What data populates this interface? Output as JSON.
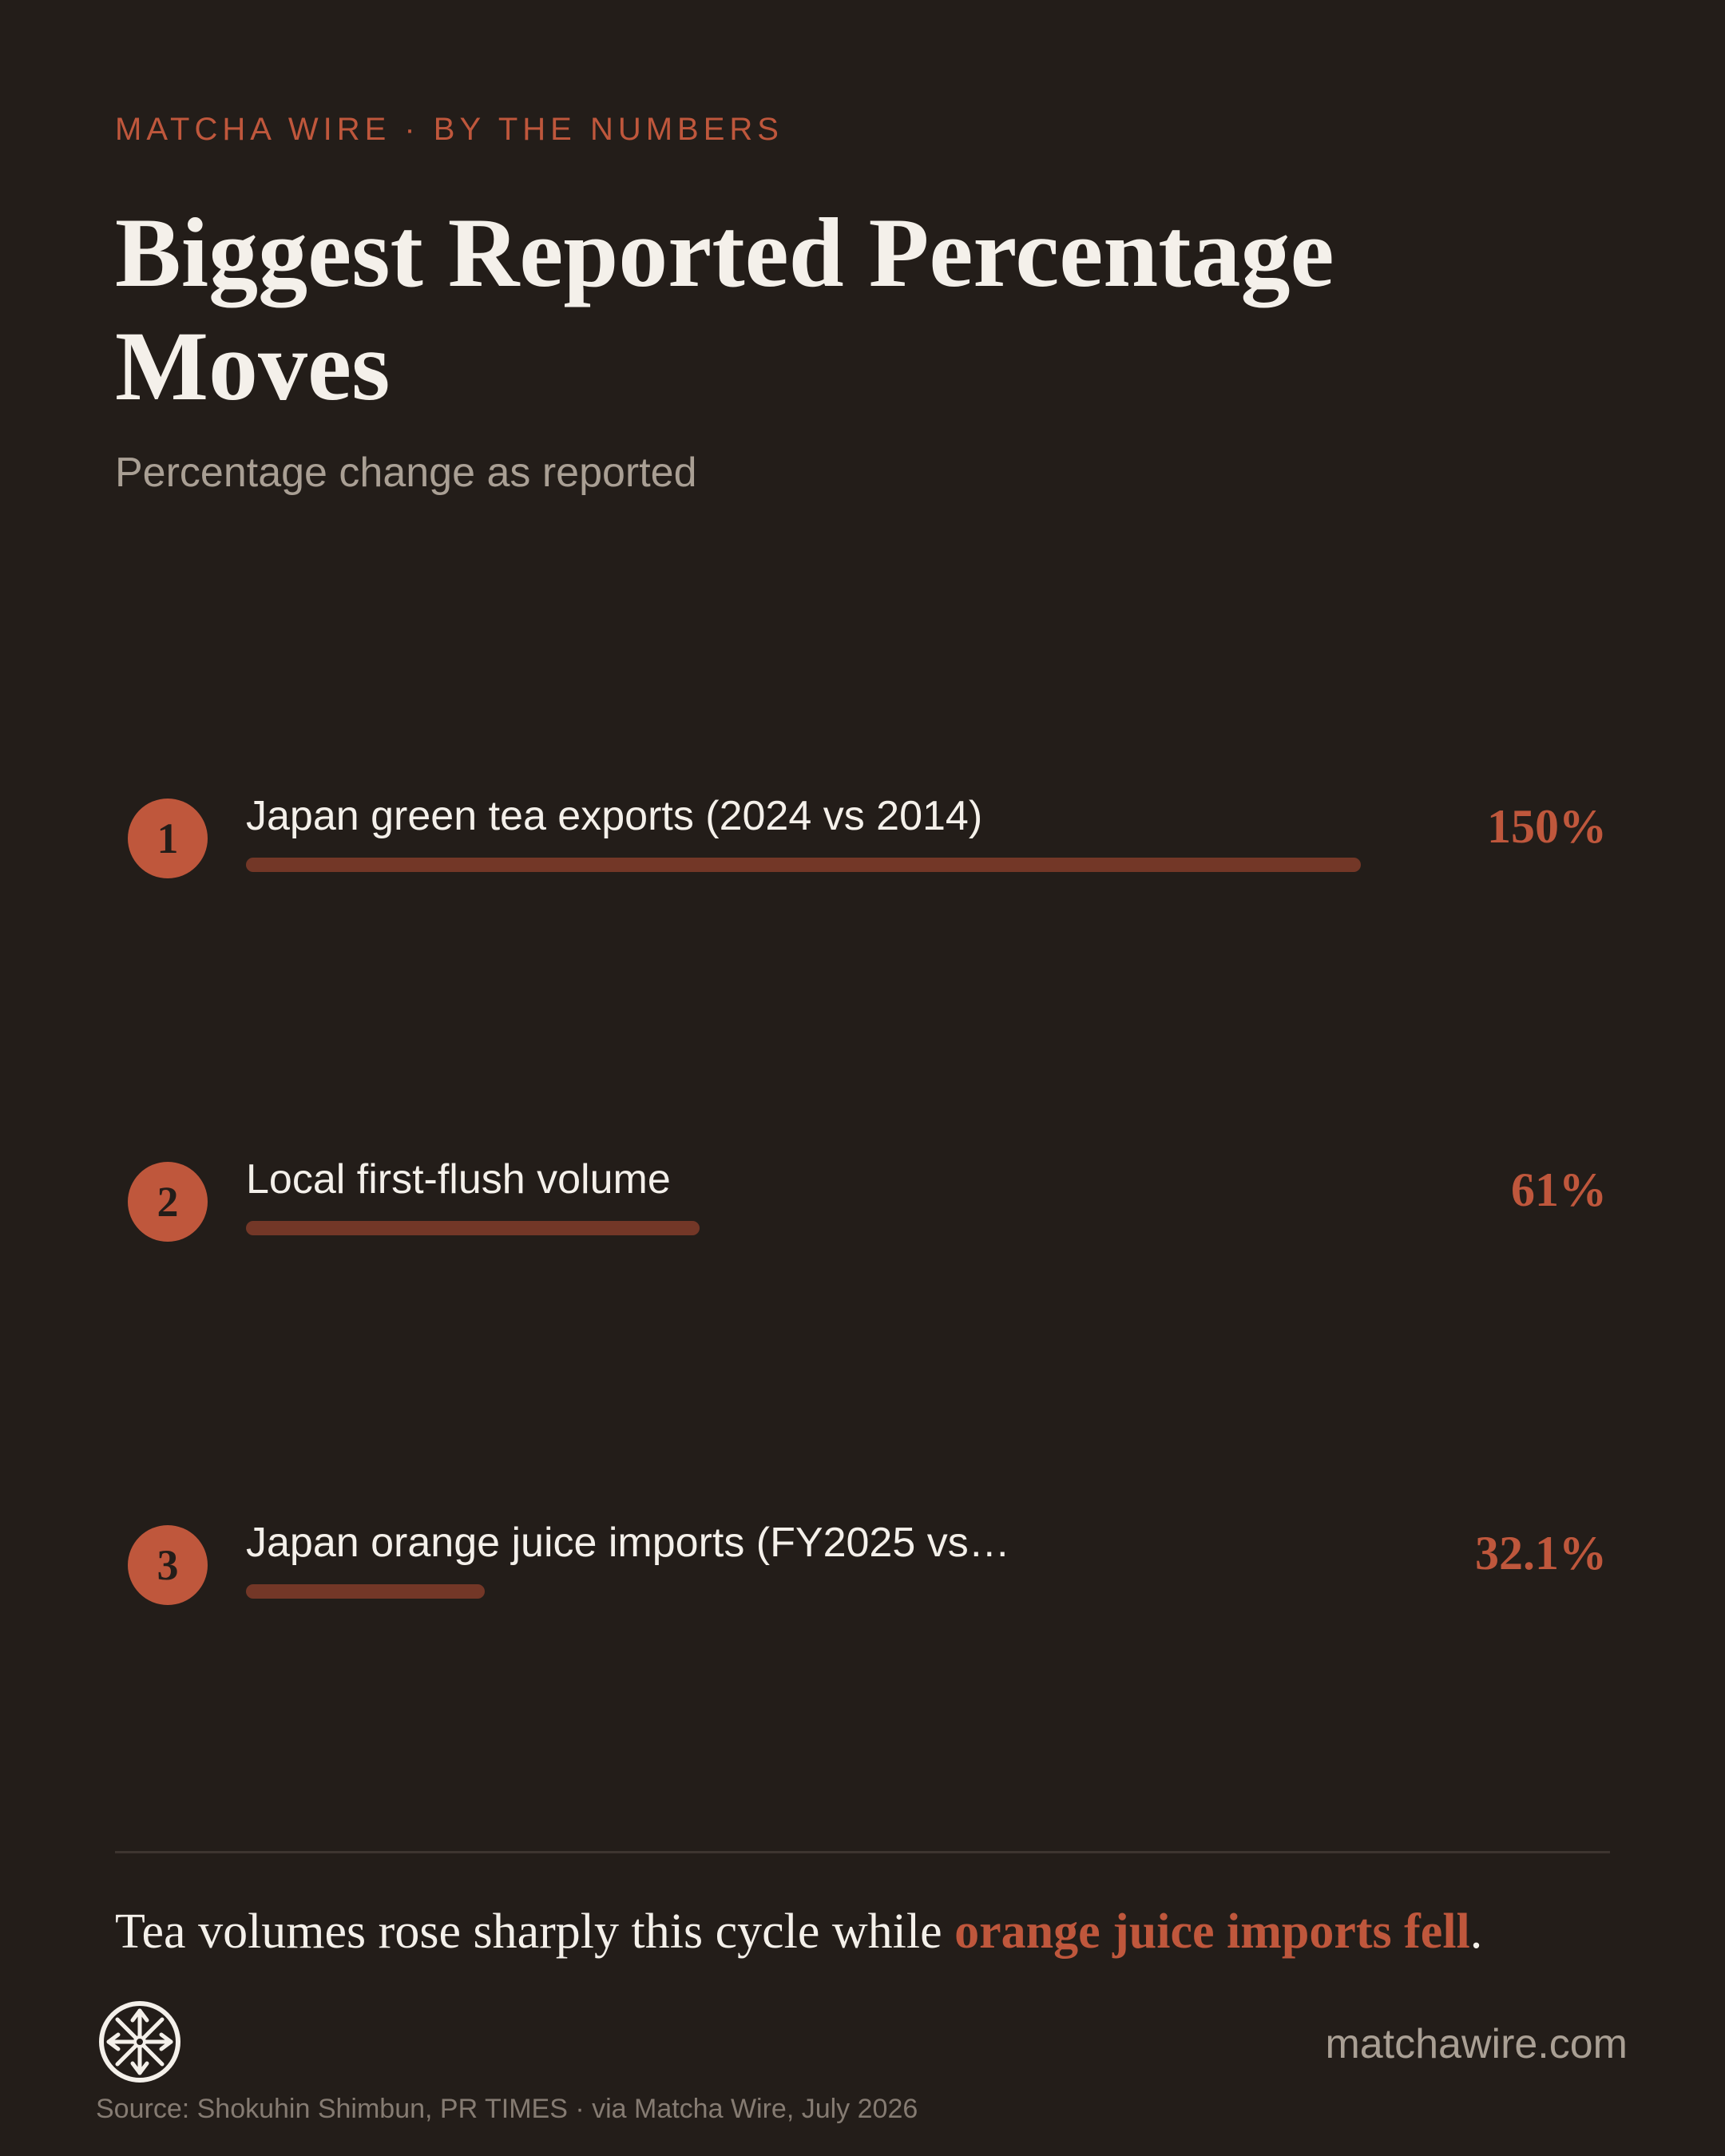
{
  "header": {
    "eyebrow": "MATCHA WIRE · BY THE NUMBERS",
    "title": "Biggest Reported Percentage Moves",
    "subtitle": "Percentage change as reported"
  },
  "chart_data": {
    "type": "bar",
    "orientation": "horizontal",
    "title": "Biggest Reported Percentage Moves",
    "subtitle": "Percentage change as reported",
    "categories": [
      "Japan green tea exports (2024 vs 2014)",
      "Local first-flush volume",
      "Japan orange juice imports (FY2025 vs…"
    ],
    "values": [
      150,
      61,
      32.1
    ],
    "value_labels": [
      "150%",
      "61%",
      "32.1%"
    ],
    "ranks": [
      "1",
      "2",
      "3"
    ],
    "xlim": [
      0,
      150
    ],
    "grid": false,
    "legend": "none"
  },
  "footer": {
    "takeaway_prefix": "Tea volumes rose sharply this cycle while ",
    "takeaway_highlight": "orange juice imports fell",
    "takeaway_suffix": ".",
    "site": "matchawire.com",
    "source": "Source: Shokuhin Shimbun, PR TIMES · via Matcha Wire, July 2026",
    "logo_icon": "wheel-logo-icon"
  },
  "colors": {
    "background": "#231d19",
    "accent": "#bf573c",
    "bar": "#733727",
    "text": "#f4f0ea",
    "muted": "#a99f94"
  }
}
